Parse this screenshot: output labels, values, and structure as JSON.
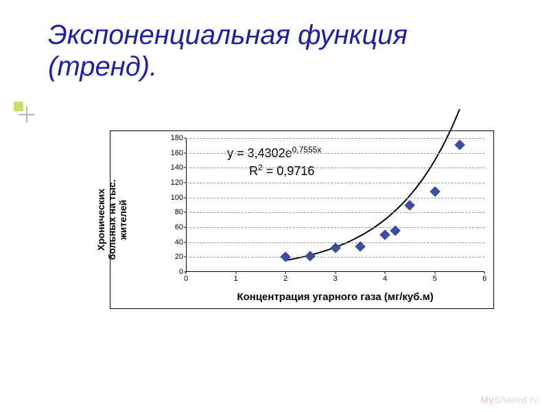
{
  "title_line1": "Экспоненциальная функция",
  "title_line2": "(тренд).",
  "title_color": "#1f1fa3",
  "bullet_color": "#cddc6b",
  "chart": {
    "type": "scatter",
    "xlim": [
      0,
      6
    ],
    "ylim": [
      0,
      180
    ],
    "ytick_step": 20,
    "xtick_step": 1,
    "yticks": [
      "0",
      "20",
      "40",
      "60",
      "80",
      "100",
      "120",
      "140",
      "160",
      "180"
    ],
    "xticks": [
      "0",
      "1",
      "2",
      "3",
      "4",
      "5",
      "6"
    ],
    "ylabel_line1": "Хронических",
    "ylabel_line2": "больных на тыс.",
    "ylabel_line3": "жителей",
    "xlabel": "Концентрация угарного газа (мг/куб.м)",
    "marker_color": "#3b4fa0",
    "marker_style": "diamond",
    "marker_size": 11,
    "grid_color": "#999999",
    "background_color": "#ffffff",
    "border_color": "#000000",
    "trend_color": "#000000",
    "trend_width": 2,
    "label_fontsize": 14,
    "tick_fontsize": 11,
    "points": [
      {
        "x": 2.0,
        "y": 20
      },
      {
        "x": 2.5,
        "y": 21
      },
      {
        "x": 3.0,
        "y": 32
      },
      {
        "x": 3.5,
        "y": 34
      },
      {
        "x": 4.0,
        "y": 50
      },
      {
        "x": 4.2,
        "y": 55
      },
      {
        "x": 4.5,
        "y": 90
      },
      {
        "x": 5.0,
        "y": 108
      },
      {
        "x": 5.5,
        "y": 171
      }
    ],
    "trend_formula": {
      "a": 3.4302,
      "b": 0.7555
    },
    "equation1_html": "y = 3,4302e<span class=\"eq-super\">0,7555x</span>",
    "equation2_html": "R<span class=\"eq-super\">2</span> = 0,9716",
    "equation_fontsize": 18
  },
  "watermark_my": "My",
  "watermark_rest": "Shared.ru"
}
